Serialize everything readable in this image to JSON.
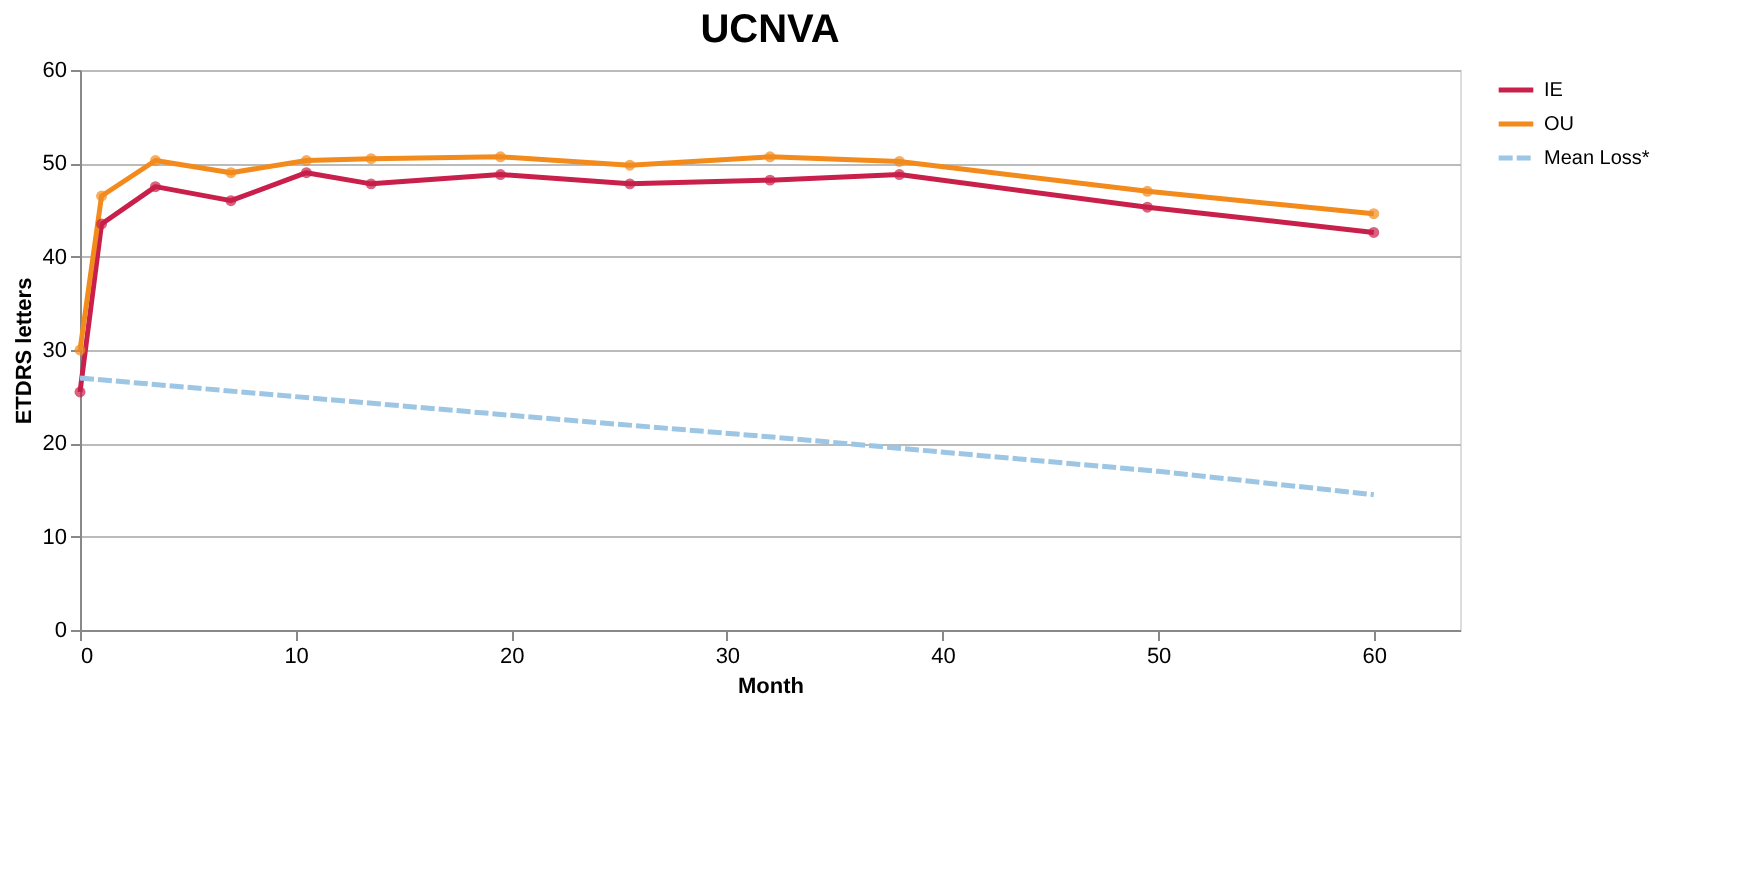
{
  "chart_data": {
    "type": "line",
    "title": "UCNVA",
    "xlabel": "Month",
    "ylabel": "ETDRS letters",
    "xlim": [
      0,
      64
    ],
    "xticks": [
      0,
      10,
      20,
      30,
      40,
      50,
      60
    ],
    "ylim": [
      0,
      60
    ],
    "yticks": [
      0,
      10,
      20,
      30,
      40,
      50,
      60
    ],
    "grid": "y",
    "legend": "right",
    "marker": "circle",
    "line_style": "solid",
    "series": [
      {
        "name": "IE",
        "color": "#c8204a",
        "x": [
          0,
          1,
          3.5,
          7,
          10.5,
          13.5,
          19.5,
          25.5,
          32,
          38,
          49.5,
          60
        ],
        "values": [
          25.5,
          43.5,
          47.5,
          46,
          49,
          47.8,
          48.8,
          47.8,
          48.2,
          48.8,
          45.3,
          42.6
        ]
      },
      {
        "name": "OU",
        "color": "#f28a1c",
        "x": [
          0,
          1,
          3.5,
          7,
          10.5,
          13.5,
          19.5,
          25.5,
          32,
          38,
          49.5,
          60
        ],
        "values": [
          30,
          46.5,
          50.3,
          49,
          50.3,
          50.5,
          50.7,
          49.8,
          50.7,
          50.2,
          47,
          44.6
        ]
      },
      {
        "name": "Mean Loss*",
        "color": "#9cc6e4",
        "marker": "none",
        "line_style": "dashed",
        "x": [
          0,
          20,
          33,
          50,
          60
        ],
        "values": [
          27,
          23,
          20.5,
          17,
          14.5
        ]
      }
    ]
  }
}
